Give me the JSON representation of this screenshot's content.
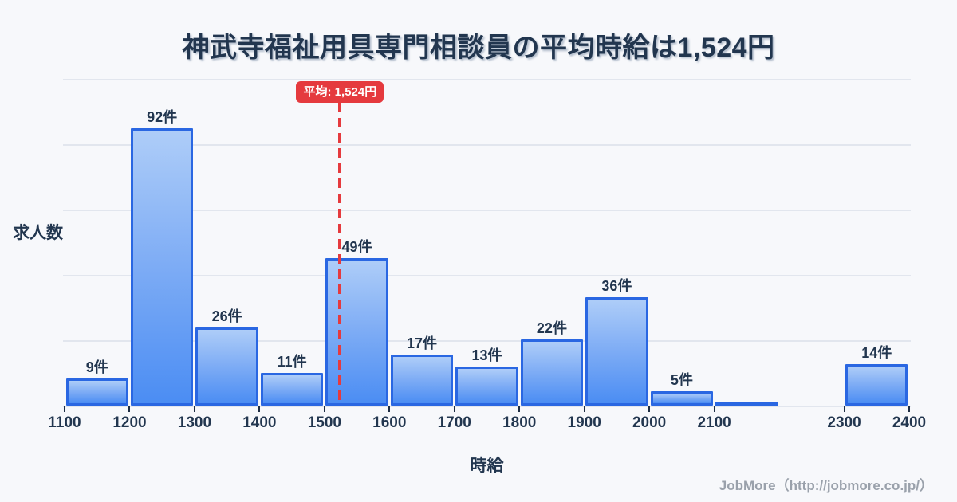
{
  "title": "神武寺福祉用具専門相談員の平均時給は1,524円",
  "footer": "JobMore（http://jobmore.co.jp/）",
  "chart_data": {
    "type": "bar",
    "title": "神武寺福祉用具専門相談員の平均時給は1,524円",
    "xlabel": "時給",
    "ylabel": "求人数",
    "unit_suffix": "件",
    "x_range": [
      1100,
      2400
    ],
    "ylim": [
      0,
      108
    ],
    "grid": true,
    "y_gridline_count": 6,
    "bins": [
      {
        "start": 1100,
        "end": 1200,
        "value": 9,
        "label": "9件"
      },
      {
        "start": 1200,
        "end": 1300,
        "value": 92,
        "label": "92件"
      },
      {
        "start": 1300,
        "end": 1400,
        "value": 26,
        "label": "26件"
      },
      {
        "start": 1400,
        "end": 1500,
        "value": 11,
        "label": "11件"
      },
      {
        "start": 1500,
        "end": 1600,
        "value": 49,
        "label": "49件"
      },
      {
        "start": 1600,
        "end": 1700,
        "value": 17,
        "label": "17件"
      },
      {
        "start": 1700,
        "end": 1800,
        "value": 13,
        "label": "13件"
      },
      {
        "start": 1800,
        "end": 1900,
        "value": 22,
        "label": "22件"
      },
      {
        "start": 1900,
        "end": 2000,
        "value": 36,
        "label": "36件"
      },
      {
        "start": 2000,
        "end": 2100,
        "value": 5,
        "label": "5件"
      },
      {
        "start": 2100,
        "end": 2200,
        "value": 1,
        "label": ""
      },
      {
        "start": 2300,
        "end": 2400,
        "value": 14,
        "label": "14件"
      }
    ],
    "x_ticks": [
      1100,
      1200,
      1300,
      1400,
      1500,
      1600,
      1700,
      1800,
      1900,
      2000,
      2100,
      2300,
      2400
    ],
    "average": {
      "value": 1524,
      "label": "平均: 1,524円"
    }
  },
  "colors": {
    "background": "#f7f8fb",
    "text_dark": "#22364f",
    "grid": "#e2e6ee",
    "bar_border": "#2a67e2",
    "bar_fill_top": "#aecdf8",
    "bar_fill_mid": "#7fadf5",
    "bar_fill_bottom": "#4b8df3",
    "accent_red": "#e53a3e",
    "footer_gray": "#9aa1ab"
  }
}
